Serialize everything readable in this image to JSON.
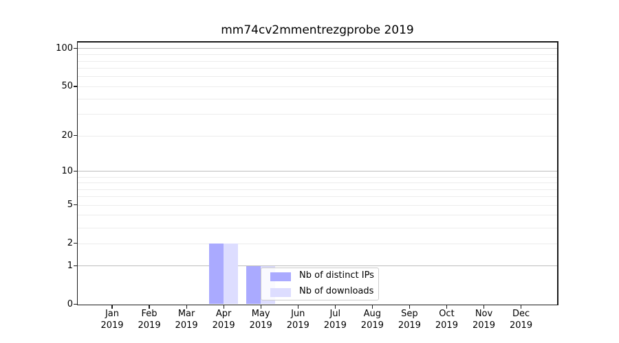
{
  "chart_data": {
    "type": "bar",
    "title": "mm74cv2mmentrezgprobe 2019",
    "x": {
      "months": [
        "Jan",
        "Feb",
        "Mar",
        "Apr",
        "May",
        "Jun",
        "Jul",
        "Aug",
        "Sep",
        "Oct",
        "Nov",
        "Dec"
      ],
      "year": "2019"
    },
    "series": [
      {
        "name": "Nb of distinct IPs",
        "color": "#aaaaff",
        "values": [
          0,
          0,
          0,
          2,
          1,
          0,
          0,
          0,
          0,
          0,
          0,
          0
        ]
      },
      {
        "name": "Nb of downloads",
        "color": "#ddddff",
        "values": [
          0,
          0,
          0,
          2,
          1,
          0,
          0,
          0,
          0,
          0,
          0,
          0
        ]
      }
    ],
    "y_axis": {
      "scale": "log1p",
      "tick_values": [
        0,
        1,
        2,
        5,
        10,
        20,
        50,
        100
      ],
      "major_gridlines": [
        1,
        10,
        100
      ],
      "minor_gridlines": [
        2,
        3,
        4,
        5,
        6,
        7,
        8,
        9,
        20,
        30,
        40,
        50,
        60,
        70,
        80,
        90
      ]
    },
    "legend": {
      "entries": [
        "Nb of distinct IPs",
        "Nb of downloads"
      ],
      "location": "lower-center"
    },
    "grid": "on"
  },
  "colors": {
    "background": "#ffffff",
    "axis": "#1a1a1a",
    "major_grid": "#bdbdbd",
    "minor_grid": "#ececec",
    "legend_border": "#cccccc",
    "text": "#000000"
  }
}
